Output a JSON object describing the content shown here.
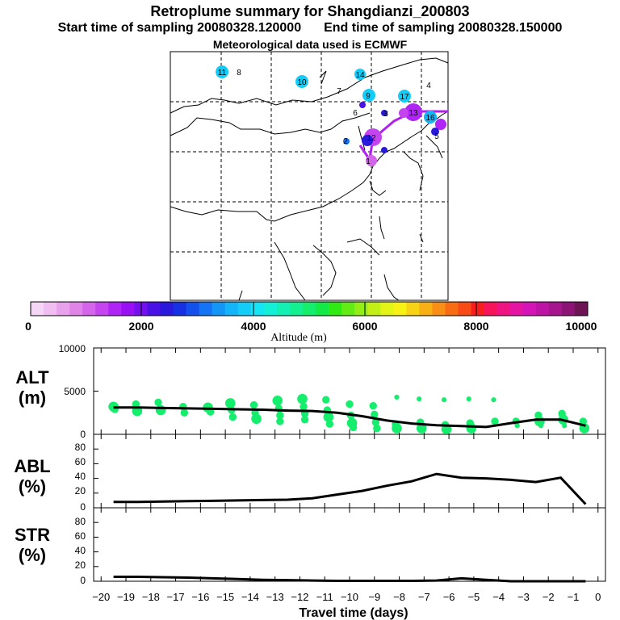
{
  "header": {
    "title": "Retroplume summary for Shangdianzi_200803",
    "start_label": "Start time of sampling 20080328.120000",
    "end_label": "End time of sampling 20080328.150000",
    "met_label": "Meteorological data used is ECMWF"
  },
  "colorbar": {
    "title": "Altitude (m)",
    "ticks": [
      "0",
      "2000",
      "4000",
      "6000",
      "8000",
      "10000"
    ],
    "colors": [
      "#f6d6f6",
      "#f0bef0",
      "#e8a2ec",
      "#e084e8",
      "#d464ea",
      "#c444f0",
      "#b024f6",
      "#9a10f4",
      "#7410ee",
      "#4a10e6",
      "#2a18dc",
      "#1630e4",
      "#1450ec",
      "#1474f4",
      "#1496f6",
      "#14b4f8",
      "#14ccf8",
      "#14e4f4",
      "#14f0d8",
      "#14f0b4",
      "#14f090",
      "#14ee6c",
      "#14ea46",
      "#30ea14",
      "#62ec14",
      "#92ee14",
      "#c2f014",
      "#e2f414",
      "#f8f214",
      "#f8d214",
      "#f8b014",
      "#f88e14",
      "#f86c14",
      "#f84a14",
      "#f81e1e",
      "#f8145a",
      "#f01482",
      "#e614a2",
      "#d414b6",
      "#be14a6",
      "#a6148e",
      "#8c1474",
      "#6e1454"
    ]
  },
  "map": {
    "plume_labels": [
      "11",
      "8",
      "10",
      "14",
      "7",
      "9",
      "17",
      "4",
      "6",
      "3",
      "13",
      "16",
      "5",
      "2",
      "12",
      "1"
    ]
  },
  "chart_data": [
    {
      "type": "scatter",
      "name": "ALT",
      "ylabel_top": "ALT",
      "ylabel_bottom": "(m)",
      "ylim": [
        0,
        10000
      ],
      "y_ticks": [
        "10000",
        "5000",
        "0"
      ],
      "x": [
        -19.5,
        -18.5,
        -17.5,
        -16.5,
        -15.5,
        -14.5,
        -13.5,
        -12.5,
        -11.5,
        -10.5,
        -9.5,
        -8.5,
        -7.5,
        -6.5,
        -5.5,
        -4.5,
        -3.5,
        -2.5,
        -1.5,
        -0.5
      ],
      "line_values": [
        3100,
        3100,
        3050,
        3000,
        2950,
        2900,
        2850,
        2750,
        2700,
        2500,
        2100,
        1600,
        1250,
        1050,
        950,
        850,
        1300,
        1700,
        1700,
        1000
      ],
      "points": [
        {
          "x": -19.5,
          "y": 3200,
          "s": 3
        },
        {
          "x": -19.45,
          "y": 2900,
          "s": 2
        },
        {
          "x": -18.6,
          "y": 3500,
          "s": 2
        },
        {
          "x": -18.55,
          "y": 2700,
          "s": 3
        },
        {
          "x": -17.7,
          "y": 3700,
          "s": 2
        },
        {
          "x": -17.6,
          "y": 2800,
          "s": 3
        },
        {
          "x": -16.7,
          "y": 3200,
          "s": 2
        },
        {
          "x": -16.65,
          "y": 2500,
          "s": 2
        },
        {
          "x": -15.7,
          "y": 3100,
          "s": 3
        },
        {
          "x": -15.6,
          "y": 2600,
          "s": 2
        },
        {
          "x": -14.8,
          "y": 3600,
          "s": 3
        },
        {
          "x": -14.75,
          "y": 2800,
          "s": 2
        },
        {
          "x": -14.7,
          "y": 2000,
          "s": 2
        },
        {
          "x": -13.85,
          "y": 3400,
          "s": 2
        },
        {
          "x": -13.8,
          "y": 2500,
          "s": 2
        },
        {
          "x": -13.75,
          "y": 1800,
          "s": 3
        },
        {
          "x": -12.9,
          "y": 3900,
          "s": 3
        },
        {
          "x": -12.85,
          "y": 3000,
          "s": 2
        },
        {
          "x": -12.8,
          "y": 2200,
          "s": 2
        },
        {
          "x": -12.8,
          "y": 1500,
          "s": 2
        },
        {
          "x": -11.9,
          "y": 4100,
          "s": 3
        },
        {
          "x": -11.85,
          "y": 3200,
          "s": 2
        },
        {
          "x": -11.8,
          "y": 2400,
          "s": 2
        },
        {
          "x": -11.8,
          "y": 1700,
          "s": 2
        },
        {
          "x": -10.95,
          "y": 4000,
          "s": 2
        },
        {
          "x": -10.9,
          "y": 2800,
          "s": 2
        },
        {
          "x": -10.85,
          "y": 2000,
          "s": 3
        },
        {
          "x": -10.8,
          "y": 1200,
          "s": 2
        },
        {
          "x": -10.0,
          "y": 3500,
          "s": 2
        },
        {
          "x": -9.95,
          "y": 2200,
          "s": 2
        },
        {
          "x": -9.9,
          "y": 1300,
          "s": 3
        },
        {
          "x": -9.85,
          "y": 800,
          "s": 2
        },
        {
          "x": -9.05,
          "y": 3300,
          "s": 2
        },
        {
          "x": -9.0,
          "y": 2300,
          "s": 2
        },
        {
          "x": -8.95,
          "y": 1400,
          "s": 2
        },
        {
          "x": -8.9,
          "y": 700,
          "s": 2
        },
        {
          "x": -8.15,
          "y": 1200,
          "s": 2
        },
        {
          "x": -8.1,
          "y": 700,
          "s": 3
        },
        {
          "x": -8.1,
          "y": 4300,
          "s": 1
        },
        {
          "x": -7.2,
          "y": 4100,
          "s": 1
        },
        {
          "x": -7.15,
          "y": 1400,
          "s": 2
        },
        {
          "x": -7.1,
          "y": 700,
          "s": 3
        },
        {
          "x": -6.2,
          "y": 4000,
          "s": 1
        },
        {
          "x": -6.15,
          "y": 1100,
          "s": 2
        },
        {
          "x": -6.1,
          "y": 600,
          "s": 3
        },
        {
          "x": -5.2,
          "y": 4100,
          "s": 1
        },
        {
          "x": -5.15,
          "y": 1300,
          "s": 2
        },
        {
          "x": -5.1,
          "y": 700,
          "s": 3
        },
        {
          "x": -4.2,
          "y": 4000,
          "s": 1
        },
        {
          "x": -4.15,
          "y": 1500,
          "s": 2
        },
        {
          "x": -3.3,
          "y": 1500,
          "s": 2
        },
        {
          "x": -3.25,
          "y": 1000,
          "s": 1
        },
        {
          "x": -2.4,
          "y": 2200,
          "s": 2
        },
        {
          "x": -2.35,
          "y": 1500,
          "s": 3
        },
        {
          "x": -2.3,
          "y": 1000,
          "s": 1
        },
        {
          "x": -1.45,
          "y": 2400,
          "s": 2
        },
        {
          "x": -1.4,
          "y": 1700,
          "s": 3
        },
        {
          "x": -1.35,
          "y": 1000,
          "s": 1
        },
        {
          "x": -0.6,
          "y": 1500,
          "s": 2
        },
        {
          "x": -0.55,
          "y": 700,
          "s": 3
        }
      ]
    },
    {
      "type": "line",
      "name": "ABL",
      "ylabel_top": "ABL",
      "ylabel_bottom": "(%)",
      "ylim": [
        0,
        100
      ],
      "y_ticks": [
        "80",
        "60",
        "40",
        "20",
        "0"
      ],
      "x": [
        -19.5,
        -18.5,
        -17.5,
        -16.5,
        -15.5,
        -14.5,
        -13.5,
        -12.5,
        -11.5,
        -10.5,
        -9.5,
        -8.5,
        -7.5,
        -6.5,
        -5.5,
        -4.5,
        -3.5,
        -2.5,
        -1.5,
        -0.5
      ],
      "values": [
        8,
        8,
        8.5,
        9,
        9.5,
        10,
        10.5,
        11,
        13,
        18,
        23,
        30,
        36,
        46,
        41,
        40,
        38,
        35,
        41,
        5
      ]
    },
    {
      "type": "line",
      "name": "STR",
      "ylabel_top": "STR",
      "ylabel_bottom": "(%)",
      "ylim": [
        0,
        100
      ],
      "y_ticks": [
        "80",
        "60",
        "40",
        "20",
        "0"
      ],
      "x": [
        -19.5,
        -18.5,
        -17.5,
        -16.5,
        -15.5,
        -14.5,
        -13.5,
        -12.5,
        -11.5,
        -10.5,
        -9.5,
        -8.5,
        -7.5,
        -6.5,
        -5.5,
        -4.5,
        -3.5,
        -2.5,
        -1.5,
        -0.5
      ],
      "values": [
        6,
        6,
        5.5,
        5,
        4,
        3,
        2,
        1.5,
        1,
        0.5,
        0.5,
        0.5,
        0.5,
        1,
        4,
        2,
        0,
        0,
        0,
        0
      ]
    }
  ],
  "x_axis": {
    "label": "Travel time (days)",
    "tick_labels": [
      "−20",
      "−19",
      "−18",
      "−17",
      "−16",
      "−15",
      "−14",
      "−13",
      "−12",
      "−11",
      "−10",
      "−9",
      "−8",
      "−7",
      "−6",
      "−5",
      "−4",
      "−3",
      "−2",
      "−1",
      "0"
    ]
  }
}
